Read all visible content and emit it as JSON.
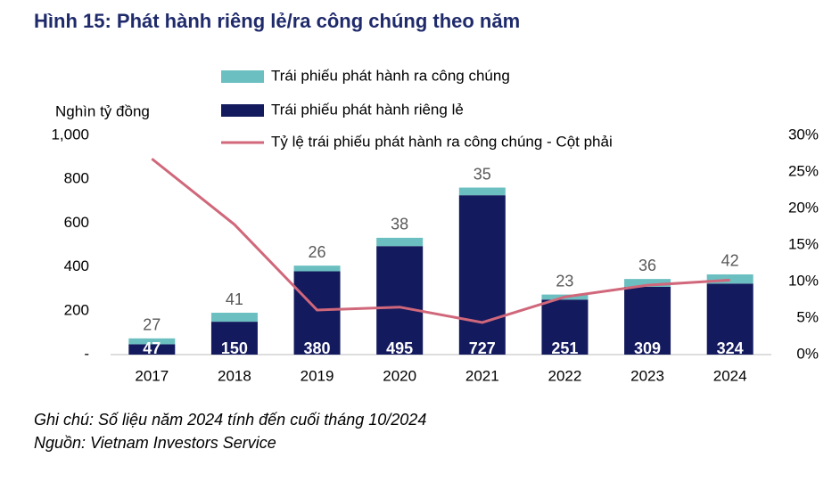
{
  "chart_data": {
    "type": "bar",
    "title": "Hình 15: Phát hành riêng lẻ/ra công chúng theo năm",
    "ylabel": "Nghìn tỷ đồng",
    "categories": [
      "2017",
      "2018",
      "2019",
      "2020",
      "2021",
      "2022",
      "2023",
      "2024"
    ],
    "series": [
      {
        "name": "Trái phiếu phát hành ra công chúng",
        "color": "#6cbfc1",
        "values": [
          27,
          41,
          26,
          38,
          35,
          23,
          36,
          42
        ]
      },
      {
        "name": "Trái phiếu phát hành riêng lẻ",
        "color": "#141a5e",
        "values": [
          47,
          150,
          380,
          495,
          727,
          251,
          309,
          324
        ]
      },
      {
        "name": "Tỷ lệ trái phiếu phát hành ra công chúng - Cột phải",
        "color": "#d0677a",
        "axis": "y2",
        "values": [
          26.8,
          17.8,
          6.1,
          6.5,
          4.4,
          7.9,
          9.5,
          10.2
        ]
      }
    ],
    "ylim": [
      0,
      1000
    ],
    "yticks": [
      {
        "value": 0,
        "label": "-"
      },
      200,
      400,
      600,
      800,
      {
        "value": 1000,
        "label": "1,000"
      }
    ],
    "y2lim": [
      0,
      30
    ],
    "y2ticks": [
      {
        "value": 0,
        "label": "0%"
      },
      {
        "value": 5,
        "label": "5%"
      },
      {
        "value": 10,
        "label": "10%"
      },
      {
        "value": 15,
        "label": "15%"
      },
      {
        "value": 20,
        "label": "20%"
      },
      {
        "value": 25,
        "label": "25%"
      },
      {
        "value": 30,
        "label": "30%"
      }
    ],
    "notes": [
      "Ghi chú: Số liệu năm 2024 tính đến cuối tháng 10/2024",
      "Nguồn: Vietnam Investors Service"
    ]
  }
}
